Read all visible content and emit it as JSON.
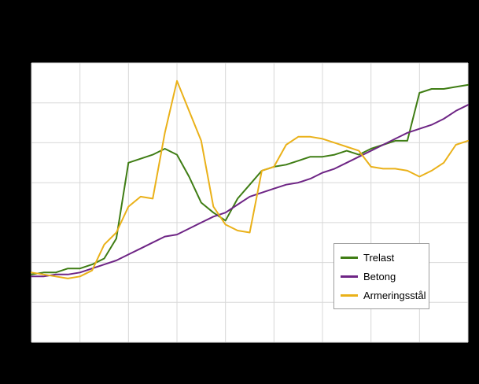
{
  "page": {
    "background_color": "#000000",
    "plot_background_color": "#ffffff",
    "grid_color": "#d8d8d8"
  },
  "chart_data": {
    "type": "line",
    "title": "",
    "xlabel": "",
    "ylabel": "",
    "grid": true,
    "legend_position": "inside-bottom-right",
    "xlim": [
      2000,
      2018
    ],
    "ylim": [
      60,
      200
    ],
    "x_grid_step": 2,
    "y_grid_step": 20,
    "x": [
      2000,
      2000.5,
      2001,
      2001.5,
      2002,
      2002.5,
      2003,
      2003.5,
      2004,
      2004.5,
      2005,
      2005.5,
      2006,
      2006.5,
      2007,
      2007.5,
      2008,
      2008.5,
      2009,
      2009.5,
      2010,
      2010.5,
      2011,
      2011.5,
      2012,
      2012.5,
      2013,
      2013.5,
      2014,
      2014.5,
      2015,
      2015.5,
      2016,
      2016.5,
      2017,
      2017.5,
      2018
    ],
    "series": [
      {
        "name": "Trelast",
        "color": "#3f7d14",
        "values": [
          94,
          95,
          95,
          97,
          97,
          99,
          102,
          112,
          150,
          152,
          154,
          157,
          154,
          143,
          130,
          125,
          121,
          132,
          139,
          146,
          148,
          149,
          151,
          153,
          153,
          154,
          156,
          154,
          157,
          159,
          161,
          161,
          185,
          187,
          187,
          188,
          189
        ]
      },
      {
        "name": "Betong",
        "color": "#6e2585",
        "values": [
          93,
          93,
          94,
          94,
          95,
          97,
          99,
          101,
          104,
          107,
          110,
          113,
          114,
          117,
          120,
          123,
          125,
          129,
          133,
          135,
          137,
          139,
          140,
          142,
          145,
          147,
          150,
          153,
          156,
          159,
          162,
          165,
          167,
          169,
          172,
          176,
          179
        ]
      },
      {
        "name": "Armeringsstål",
        "color": "#eab119",
        "values": [
          95,
          94,
          93,
          92,
          93,
          96,
          109,
          115,
          128,
          133,
          132,
          165,
          191,
          176,
          161,
          128,
          119,
          116,
          115,
          146,
          148,
          159,
          163,
          163,
          162,
          160,
          158,
          156,
          148,
          147,
          147,
          146,
          143,
          146,
          150,
          159,
          161
        ]
      }
    ]
  },
  "legend": {
    "items": [
      {
        "label": "Trelast"
      },
      {
        "label": "Betong"
      },
      {
        "label": "Armeringsstål"
      }
    ]
  }
}
